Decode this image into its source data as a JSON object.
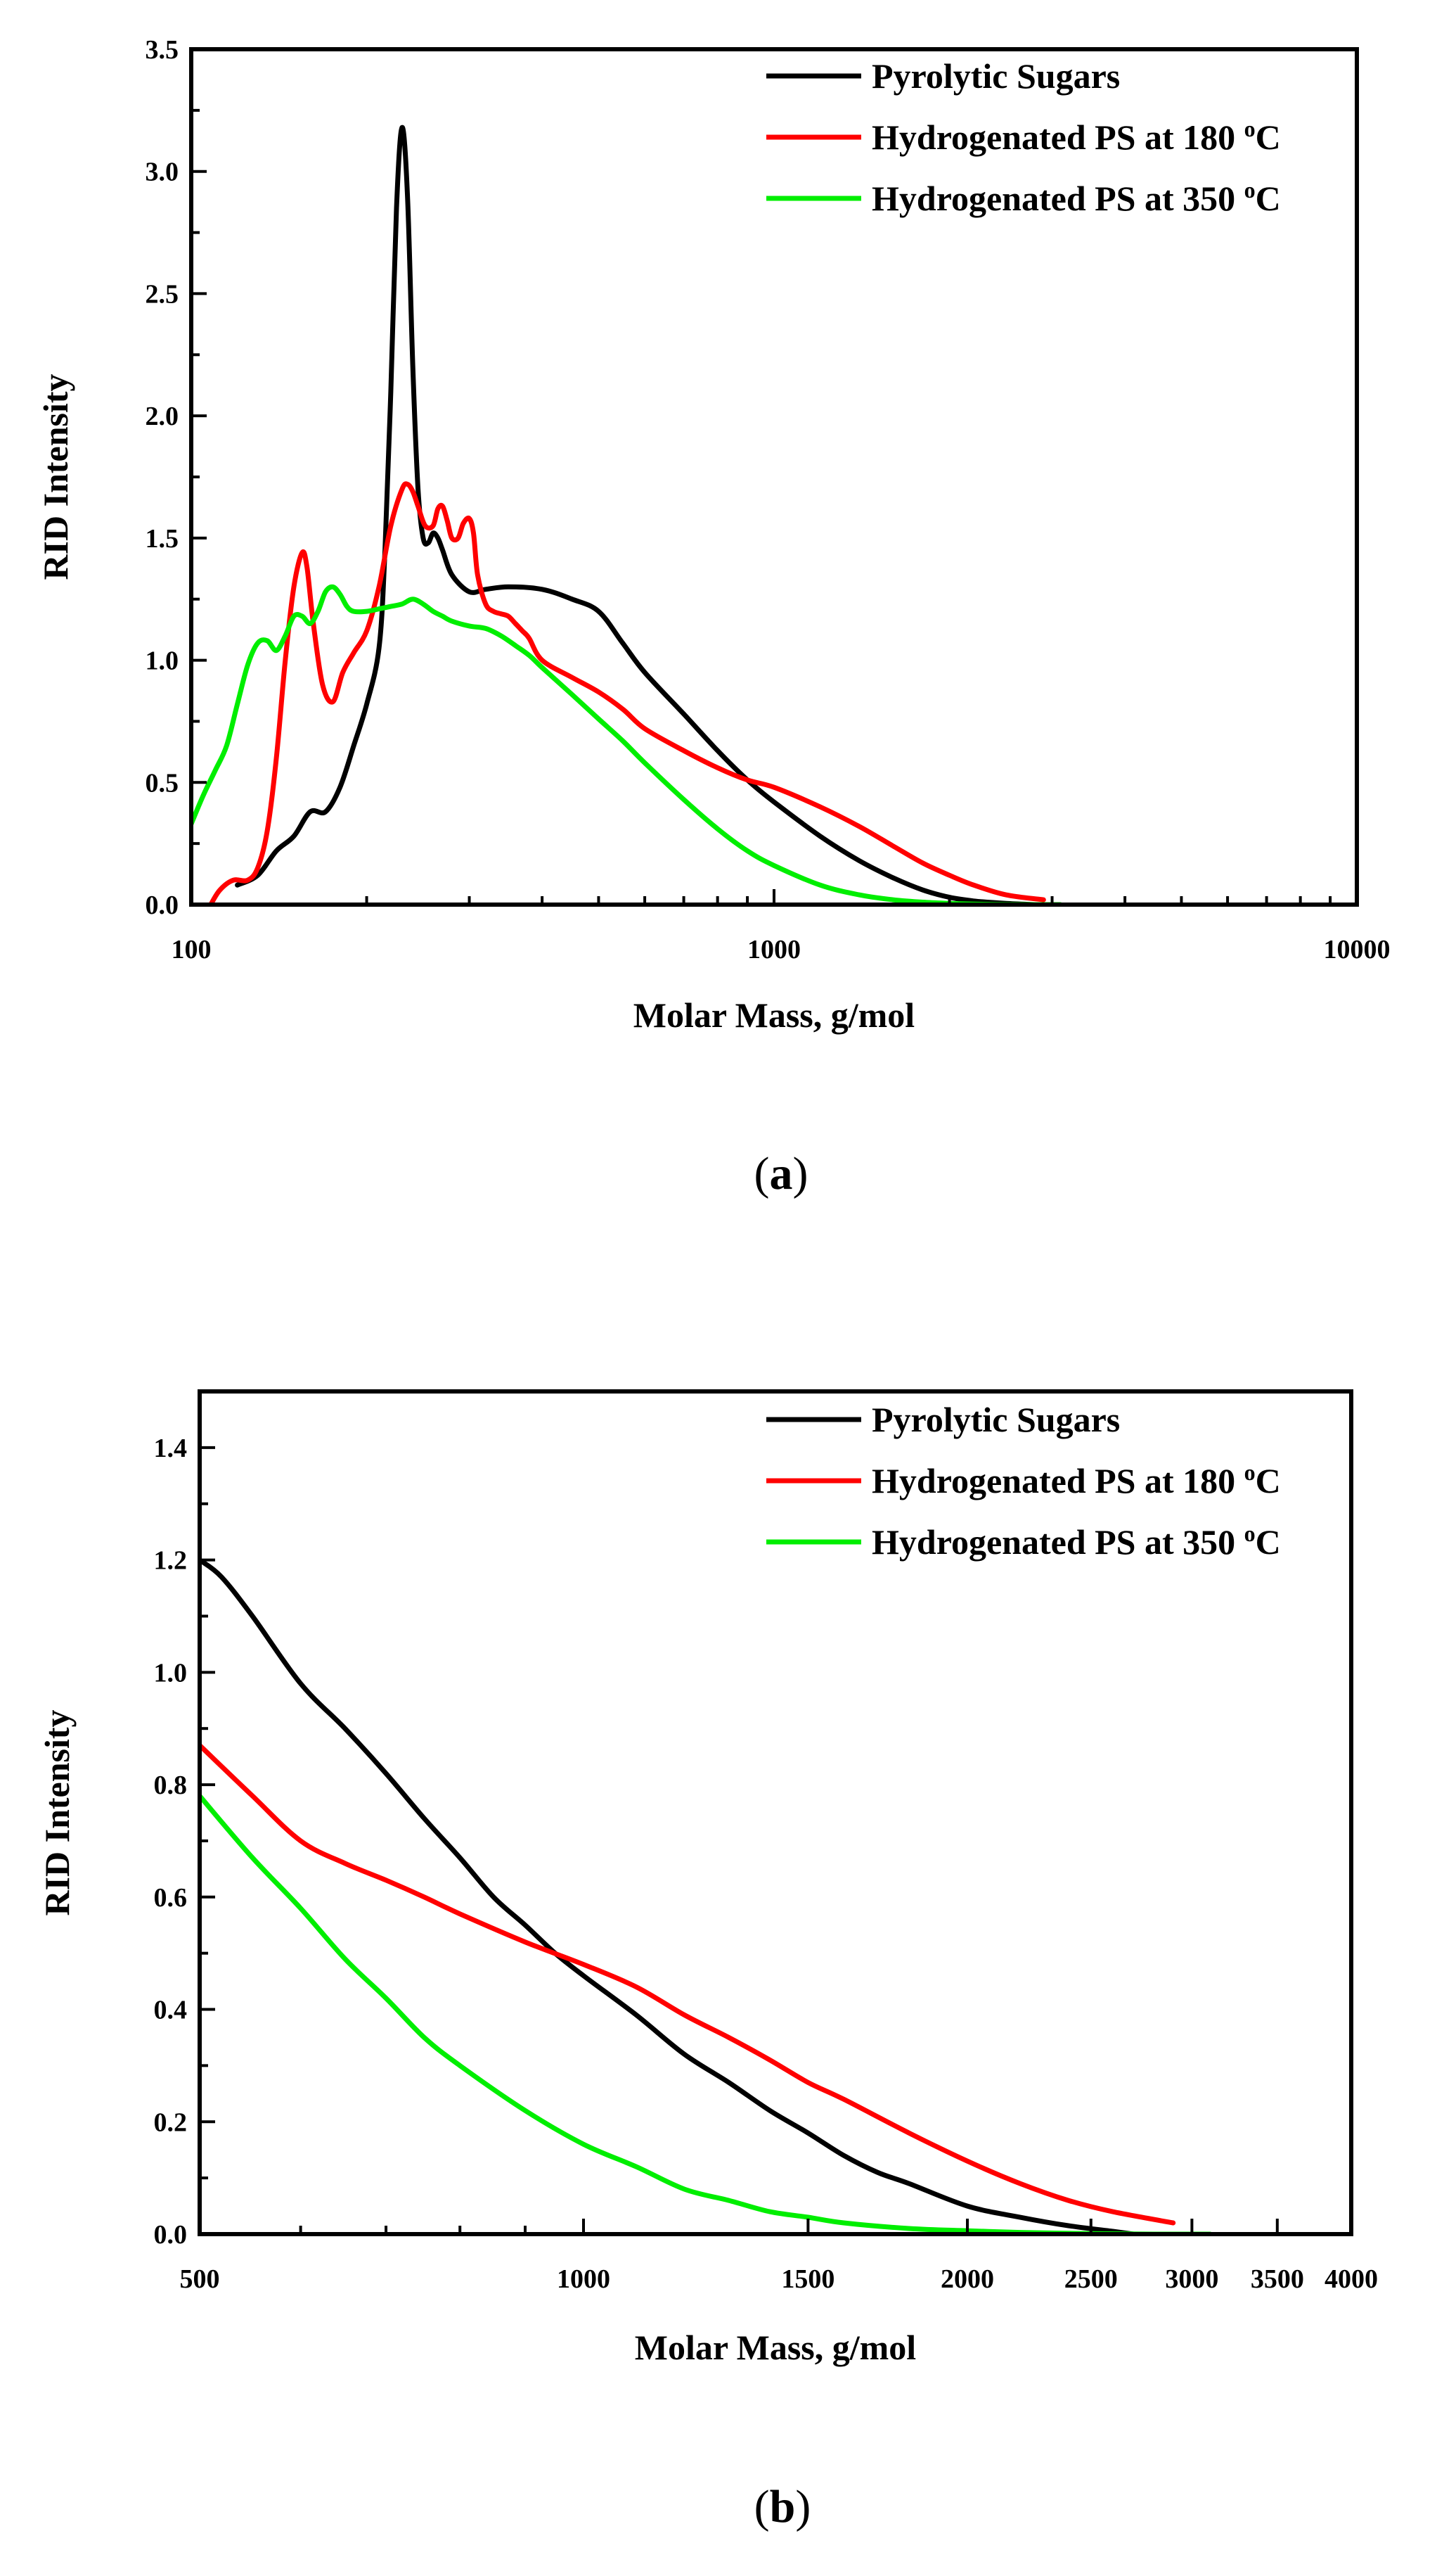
{
  "chart_data": [
    {
      "type": "line",
      "panel": "a",
      "caption_open": "(",
      "caption_letter": "a",
      "caption_close": ")",
      "xlabel": "Molar Mass, g/mol",
      "ylabel": "RID Intensity",
      "xscale": "log",
      "xlim": [
        100,
        10000
      ],
      "ylim": [
        0,
        3.5
      ],
      "x_ticks": [
        100,
        1000,
        10000
      ],
      "x_tick_labels": [
        "100",
        "1000",
        "10000"
      ],
      "y_ticks": [
        0,
        0.5,
        1.0,
        1.5,
        2.0,
        2.5,
        3.0,
        3.5
      ],
      "y_tick_labels": [
        "0.0",
        "0.5",
        "1.0",
        "1.5",
        "2.0",
        "2.5",
        "3.0",
        "3.5"
      ],
      "grid": false,
      "legend_position": "top-right",
      "series": [
        {
          "name": "Pyrolytic Sugars",
          "color": "#000000",
          "x": [
            120,
            130,
            140,
            150,
            160,
            170,
            180,
            190,
            200,
            210,
            215,
            220,
            225,
            230,
            235,
            240,
            245,
            250,
            255,
            260,
            265,
            270,
            280,
            300,
            320,
            350,
            400,
            450,
            500,
            550,
            600,
            700,
            800,
            900,
            1000,
            1200,
            1400,
            1600,
            1800,
            2000,
            2200,
            2500,
            2800
          ],
          "y": [
            0.08,
            0.12,
            0.22,
            0.28,
            0.38,
            0.38,
            0.48,
            0.65,
            0.82,
            1.05,
            1.45,
            2.1,
            2.85,
            3.18,
            2.9,
            2.2,
            1.7,
            1.5,
            1.48,
            1.52,
            1.5,
            1.45,
            1.35,
            1.28,
            1.29,
            1.3,
            1.29,
            1.25,
            1.2,
            1.07,
            0.95,
            0.78,
            0.63,
            0.51,
            0.42,
            0.28,
            0.18,
            0.11,
            0.06,
            0.03,
            0.015,
            0.005,
            0.0
          ]
        },
        {
          "name": "Hydrogenated PS at 180 °C",
          "color": "#ff0000",
          "x": [
            108,
            112,
            118,
            125,
            130,
            135,
            140,
            145,
            150,
            155,
            158,
            162,
            168,
            175,
            182,
            190,
            200,
            210,
            220,
            230,
            235,
            240,
            245,
            252,
            260,
            265,
            270,
            275,
            280,
            287,
            293,
            300,
            305,
            310,
            320,
            330,
            340,
            350,
            360,
            370,
            380,
            400,
            450,
            500,
            550,
            600,
            700,
            800,
            900,
            1000,
            1200,
            1400,
            1600,
            1800,
            2000,
            2200,
            2500,
            2900
          ],
          "y": [
            0.0,
            0.06,
            0.1,
            0.1,
            0.15,
            0.3,
            0.6,
            1.0,
            1.3,
            1.44,
            1.38,
            1.15,
            0.9,
            0.83,
            0.95,
            1.03,
            1.12,
            1.3,
            1.55,
            1.7,
            1.72,
            1.69,
            1.63,
            1.55,
            1.55,
            1.62,
            1.63,
            1.57,
            1.5,
            1.5,
            1.56,
            1.58,
            1.52,
            1.35,
            1.23,
            1.2,
            1.19,
            1.18,
            1.15,
            1.12,
            1.09,
            1.0,
            0.93,
            0.87,
            0.8,
            0.72,
            0.63,
            0.56,
            0.51,
            0.48,
            0.4,
            0.32,
            0.24,
            0.17,
            0.12,
            0.08,
            0.04,
            0.02
          ]
        },
        {
          "name": "Hydrogenated PS at 350 °C",
          "color": "#00ee00",
          "x": [
            100,
            105,
            110,
            115,
            120,
            125,
            130,
            135,
            140,
            145,
            150,
            155,
            160,
            165,
            170,
            175,
            180,
            185,
            190,
            200,
            210,
            220,
            230,
            240,
            250,
            260,
            270,
            280,
            300,
            320,
            340,
            360,
            380,
            400,
            450,
            500,
            550,
            600,
            700,
            800,
            900,
            1000,
            1200,
            1400,
            1600,
            1800,
            2000,
            2200,
            2500,
            2800,
            3100
          ],
          "y": [
            0.33,
            0.45,
            0.55,
            0.65,
            0.82,
            0.98,
            1.07,
            1.08,
            1.04,
            1.1,
            1.18,
            1.18,
            1.15,
            1.2,
            1.28,
            1.3,
            1.27,
            1.22,
            1.2,
            1.2,
            1.21,
            1.22,
            1.23,
            1.25,
            1.23,
            1.2,
            1.18,
            1.16,
            1.14,
            1.13,
            1.1,
            1.06,
            1.02,
            0.97,
            0.86,
            0.76,
            0.67,
            0.58,
            0.43,
            0.31,
            0.22,
            0.16,
            0.08,
            0.04,
            0.02,
            0.01,
            0.005,
            0.002,
            0.0,
            0.0,
            0.0
          ]
        }
      ]
    },
    {
      "type": "line",
      "panel": "b",
      "caption_open": "(",
      "caption_letter": "b",
      "caption_close": ")",
      "xlabel": "Molar Mass, g/mol",
      "ylabel": "RID Intensity",
      "xscale": "log",
      "xlim": [
        500,
        4000
      ],
      "ylim": [
        0,
        1.5
      ],
      "x_ticks": [
        500,
        1000,
        1500,
        2000,
        2500,
        3000,
        3500,
        4000
      ],
      "x_tick_labels": [
        "500",
        "1000",
        "1500",
        "2000",
        "2500",
        "3000",
        "3500",
        "4000"
      ],
      "y_ticks": [
        0,
        0.2,
        0.4,
        0.6,
        0.8,
        1.0,
        1.2,
        1.4
      ],
      "y_tick_labels": [
        "0.0",
        "0.2",
        "0.4",
        "0.6",
        "0.8",
        "1.0",
        "1.2",
        "1.4"
      ],
      "grid": false,
      "legend_position": "top-right",
      "series": [
        {
          "name": "Pyrolytic Sugars",
          "color": "#000000",
          "x": [
            500,
            520,
            550,
            600,
            650,
            700,
            750,
            800,
            850,
            900,
            950,
            1000,
            1100,
            1200,
            1300,
            1400,
            1500,
            1600,
            1700,
            1800,
            2000,
            2200,
            2400,
            2600,
            2700
          ],
          "y": [
            1.2,
            1.17,
            1.1,
            0.98,
            0.9,
            0.82,
            0.74,
            0.67,
            0.6,
            0.55,
            0.5,
            0.46,
            0.39,
            0.32,
            0.27,
            0.22,
            0.18,
            0.14,
            0.11,
            0.09,
            0.05,
            0.03,
            0.015,
            0.005,
            0.0
          ]
        },
        {
          "name": "Hydrogenated PS at 180 °C",
          "color": "#ff0000",
          "x": [
            500,
            550,
            600,
            650,
            700,
            750,
            800,
            900,
            1000,
            1100,
            1200,
            1300,
            1400,
            1500,
            1600,
            1800,
            2000,
            2200,
            2400,
            2600,
            2900
          ],
          "y": [
            0.87,
            0.78,
            0.7,
            0.66,
            0.63,
            0.6,
            0.57,
            0.52,
            0.48,
            0.44,
            0.39,
            0.35,
            0.31,
            0.27,
            0.24,
            0.18,
            0.13,
            0.09,
            0.06,
            0.04,
            0.02
          ]
        },
        {
          "name": "Hydrogenated PS at 350 °C",
          "color": "#00ee00",
          "x": [
            500,
            550,
            600,
            650,
            700,
            750,
            800,
            900,
            1000,
            1100,
            1200,
            1300,
            1400,
            1500,
            1600,
            1800,
            2000,
            2200,
            2500,
            2800,
            3100
          ],
          "y": [
            0.78,
            0.67,
            0.58,
            0.49,
            0.42,
            0.35,
            0.3,
            0.22,
            0.16,
            0.12,
            0.08,
            0.06,
            0.04,
            0.03,
            0.02,
            0.01,
            0.006,
            0.003,
            0.001,
            0.0,
            0.0
          ]
        }
      ]
    }
  ]
}
